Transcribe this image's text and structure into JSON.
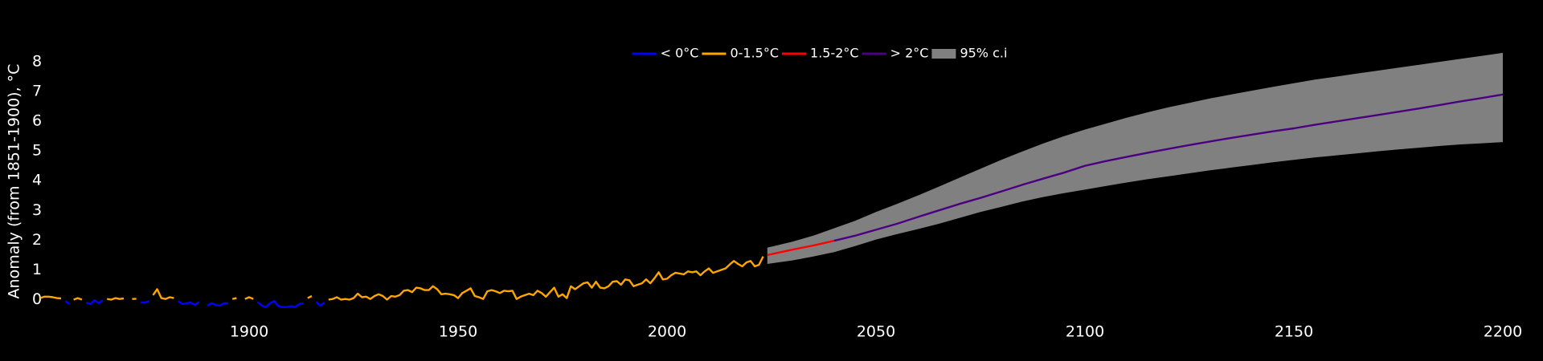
{
  "chart_data": {
    "type": "line",
    "y_label": "Anomaly (from 1851-1900), °C",
    "xlim": [
      1850,
      2200
    ],
    "xticks": [
      1900,
      1950,
      2000,
      2050,
      2100,
      2150,
      2200
    ],
    "ylim": [
      -0.6,
      8.5
    ],
    "yticks": [
      0,
      1,
      2,
      3,
      4,
      5,
      6,
      7,
      8
    ],
    "grid": false,
    "legend": "top",
    "series": [
      {
        "name": "< 0°C",
        "color": "#0000ff",
        "x": [
          1850,
          1851,
          1852,
          1853,
          1854,
          1855,
          1856,
          1857,
          1858,
          1859,
          1860,
          1861,
          1862,
          1863,
          1864,
          1865,
          1866,
          1867,
          1868,
          1869,
          1870,
          1871,
          1872,
          1873,
          1874,
          1875,
          1876,
          1877,
          1878,
          1879,
          1880,
          1881,
          1882,
          1883,
          1884,
          1885,
          1886,
          1887,
          1888,
          1889,
          1890,
          1891,
          1892,
          1893,
          1894,
          1895,
          1896,
          1897,
          1898,
          1899,
          1900,
          1901,
          1902,
          1903,
          1904,
          1905,
          1906,
          1907,
          1908,
          1909,
          1910,
          1911,
          1912,
          1913,
          1914,
          1915,
          1916,
          1917,
          1918,
          1919,
          1920
        ],
        "values": [
          null,
          null,
          null,
          null,
          null,
          null,
          -0.05,
          -0.15,
          null,
          null,
          null,
          -0.1,
          -0.15,
          -0.02,
          -0.12,
          -0.02,
          null,
          null,
          null,
          null,
          null,
          -0.05,
          null,
          null,
          -0.1,
          -0.1,
          -0.05,
          null,
          null,
          null,
          null,
          null,
          null,
          -0.05,
          -0.15,
          -0.12,
          -0.1,
          -0.18,
          -0.08,
          null,
          -0.2,
          -0.12,
          -0.18,
          -0.2,
          -0.12,
          -0.12,
          null,
          null,
          -0.12,
          null,
          null,
          null,
          -0.08,
          -0.2,
          -0.25,
          -0.12,
          -0.05,
          -0.22,
          -0.25,
          -0.25,
          -0.22,
          -0.25,
          -0.15,
          -0.12,
          null,
          null,
          -0.08,
          -0.2,
          -0.1,
          null,
          null
        ]
      },
      {
        "name": "0-1.5°C",
        "color": "#ffa500",
        "x": [
          1850,
          1851,
          1852,
          1853,
          1854,
          1855,
          1856,
          1857,
          1858,
          1859,
          1860,
          1861,
          1862,
          1863,
          1864,
          1865,
          1866,
          1867,
          1868,
          1869,
          1870,
          1871,
          1872,
          1873,
          1874,
          1875,
          1876,
          1877,
          1878,
          1879,
          1880,
          1881,
          1882,
          1883,
          1884,
          1885,
          1886,
          1887,
          1888,
          1889,
          1890,
          1891,
          1892,
          1893,
          1894,
          1895,
          1896,
          1897,
          1898,
          1899,
          1900,
          1901,
          1902,
          1903,
          1904,
          1905,
          1906,
          1907,
          1908,
          1909,
          1910,
          1911,
          1912,
          1913,
          1914,
          1915,
          1916,
          1917,
          1918,
          1919,
          1920,
          1921,
          1922,
          1923,
          1924,
          1925,
          1926,
          1927,
          1928,
          1929,
          1930,
          1931,
          1932,
          1933,
          1934,
          1935,
          1936,
          1937,
          1938,
          1939,
          1940,
          1941,
          1942,
          1943,
          1944,
          1945,
          1946,
          1947,
          1948,
          1949,
          1950,
          1951,
          1952,
          1953,
          1954,
          1955,
          1956,
          1957,
          1958,
          1959,
          1960,
          1961,
          1962,
          1963,
          1964,
          1965,
          1966,
          1967,
          1968,
          1969,
          1970,
          1971,
          1972,
          1973,
          1974,
          1975,
          1976,
          1977,
          1978,
          1979,
          1980,
          1981,
          1982,
          1983,
          1984,
          1985,
          1986,
          1987,
          1988,
          1989,
          1990,
          1991,
          1992,
          1993,
          1994,
          1995,
          1996,
          1997,
          1998,
          1999,
          2000,
          2001,
          2002,
          2003,
          2004,
          2005,
          2006,
          2007,
          2008,
          2009,
          2010,
          2011,
          2012,
          2013,
          2014,
          2015,
          2016,
          2017,
          2018,
          2019,
          2020,
          2021,
          2022,
          2023
        ],
        "values": [
          0.05,
          0.1,
          0.1,
          0.08,
          0.05,
          0.04,
          null,
          null,
          0.0,
          0.05,
          0.0,
          null,
          null,
          null,
          null,
          null,
          0.02,
          0.0,
          0.05,
          0.02,
          0.04,
          null,
          0.02,
          0.03,
          null,
          null,
          null,
          0.15,
          0.35,
          0.05,
          0.02,
          0.08,
          0.05,
          null,
          null,
          null,
          null,
          null,
          null,
          0.08,
          null,
          null,
          null,
          null,
          null,
          null,
          0.02,
          0.05,
          null,
          0.02,
          0.08,
          0.02,
          null,
          null,
          null,
          null,
          null,
          null,
          null,
          null,
          null,
          null,
          null,
          null,
          0.05,
          0.12,
          null,
          null,
          null,
          0.0,
          0.02,
          0.08,
          0.0,
          0.02,
          0.0,
          0.05,
          0.2,
          0.08,
          0.1,
          0.02,
          0.12,
          0.18,
          0.12,
          0.0,
          0.12,
          0.1,
          0.15,
          0.3,
          0.32,
          0.25,
          0.4,
          0.38,
          0.32,
          0.32,
          0.45,
          0.35,
          0.18,
          0.2,
          0.18,
          0.15,
          0.05,
          0.22,
          0.3,
          0.38,
          0.12,
          0.08,
          0.02,
          0.28,
          0.32,
          0.28,
          0.22,
          0.3,
          0.28,
          0.3,
          0.02,
          0.1,
          0.15,
          0.2,
          0.15,
          0.3,
          0.22,
          0.1,
          0.25,
          0.4,
          0.1,
          0.18,
          0.05,
          0.45,
          0.35,
          0.45,
          0.55,
          0.58,
          0.4,
          0.6,
          0.4,
          0.38,
          0.45,
          0.6,
          0.62,
          0.5,
          0.68,
          0.65,
          0.45,
          0.5,
          0.55,
          0.68,
          0.55,
          0.72,
          0.92,
          0.68,
          0.7,
          0.82,
          0.9,
          0.88,
          0.85,
          0.95,
          0.92,
          0.95,
          0.82,
          0.95,
          1.05,
          0.9,
          0.95,
          1.0,
          1.05,
          1.18,
          1.3,
          1.2,
          1.12,
          1.25,
          1.3,
          1.12,
          1.17,
          1.45
        ]
      },
      {
        "name": "1.5-2°C",
        "color": "#ff0000",
        "x": [
          2024,
          2025,
          2030,
          2035,
          2040
        ],
        "values": [
          1.5,
          1.53,
          1.68,
          1.82,
          1.98
        ]
      },
      {
        "name": "> 2°C",
        "color": "#4b0082",
        "x": [
          2040,
          2045,
          2050,
          2055,
          2060,
          2065,
          2070,
          2075,
          2080,
          2085,
          2090,
          2095,
          2100,
          2105,
          2110,
          2115,
          2120,
          2125,
          2130,
          2135,
          2140,
          2145,
          2150,
          2155,
          2160,
          2165,
          2170,
          2175,
          2180,
          2185,
          2190,
          2195,
          2200
        ],
        "values": [
          1.98,
          2.15,
          2.35,
          2.55,
          2.78,
          3.0,
          3.22,
          3.42,
          3.64,
          3.86,
          4.07,
          4.27,
          4.5,
          4.66,
          4.8,
          4.94,
          5.07,
          5.2,
          5.32,
          5.44,
          5.55,
          5.66,
          5.76,
          5.88,
          5.99,
          6.1,
          6.21,
          6.32,
          6.43,
          6.55,
          6.67,
          6.78,
          6.9
        ]
      },
      {
        "name": "95% c.i",
        "color": "#808080",
        "band": true,
        "x": [
          2024,
          2025,
          2030,
          2035,
          2040,
          2045,
          2050,
          2055,
          2060,
          2065,
          2070,
          2075,
          2080,
          2085,
          2090,
          2095,
          2100,
          2105,
          2110,
          2115,
          2120,
          2125,
          2130,
          2135,
          2140,
          2145,
          2150,
          2155,
          2160,
          2165,
          2170,
          2175,
          2180,
          2185,
          2190,
          2195,
          2200
        ],
        "lower": [
          1.2,
          1.22,
          1.32,
          1.45,
          1.6,
          1.8,
          2.02,
          2.2,
          2.37,
          2.55,
          2.75,
          2.95,
          3.12,
          3.3,
          3.45,
          3.58,
          3.7,
          3.82,
          3.94,
          4.05,
          4.15,
          4.25,
          4.35,
          4.44,
          4.53,
          4.62,
          4.7,
          4.78,
          4.85,
          4.92,
          4.99,
          5.05,
          5.11,
          5.17,
          5.22,
          5.26,
          5.3
        ],
        "upper": [
          1.75,
          1.78,
          1.95,
          2.15,
          2.4,
          2.65,
          2.95,
          3.22,
          3.5,
          3.8,
          4.1,
          4.4,
          4.7,
          4.98,
          5.25,
          5.5,
          5.72,
          5.92,
          6.12,
          6.3,
          6.47,
          6.62,
          6.77,
          6.9,
          7.03,
          7.16,
          7.28,
          7.4,
          7.5,
          7.6,
          7.7,
          7.8,
          7.9,
          8.0,
          8.1,
          8.2,
          8.3
        ]
      }
    ]
  }
}
